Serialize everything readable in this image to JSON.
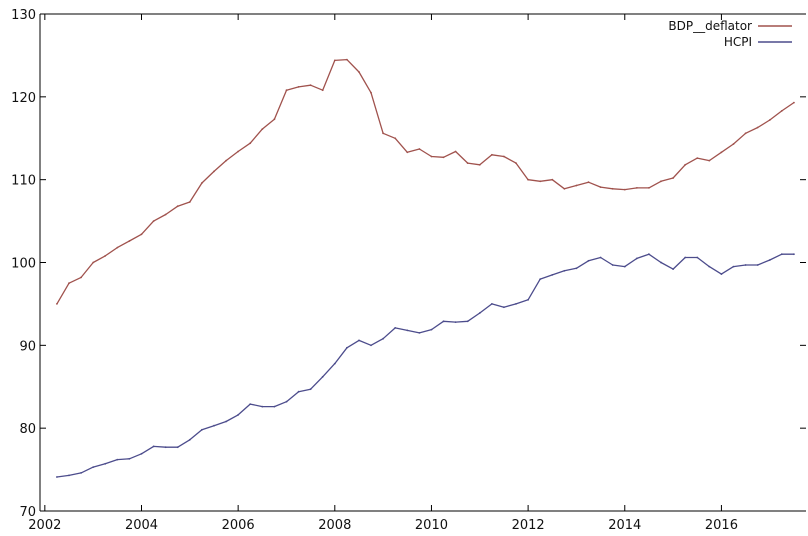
{
  "chart_data": {
    "type": "line",
    "title": "",
    "xlabel": "",
    "ylabel": "",
    "xlim": [
      2001.9,
      2017.75
    ],
    "ylim": [
      70,
      130
    ],
    "x_ticks": [
      "2002",
      "2004",
      "2006",
      "2008",
      "2010",
      "2012",
      "2014",
      "2016"
    ],
    "y_ticks": [
      "70",
      "80",
      "90",
      "100",
      "110",
      "120",
      "130"
    ],
    "grid": false,
    "legend_position": "top-right",
    "x": [
      2002.25,
      2002.5,
      2002.75,
      2003.0,
      2003.25,
      2003.5,
      2003.75,
      2004.0,
      2004.25,
      2004.5,
      2004.75,
      2005.0,
      2005.25,
      2005.5,
      2005.75,
      2006.0,
      2006.25,
      2006.5,
      2006.75,
      2007.0,
      2007.25,
      2007.5,
      2007.75,
      2008.0,
      2008.25,
      2008.5,
      2008.75,
      2009.0,
      2009.25,
      2009.5,
      2009.75,
      2010.0,
      2010.25,
      2010.5,
      2010.75,
      2011.0,
      2011.25,
      2011.5,
      2011.75,
      2012.0,
      2012.25,
      2012.5,
      2012.75,
      2013.0,
      2013.25,
      2013.5,
      2013.75,
      2014.0,
      2014.25,
      2014.5,
      2014.75,
      2015.0,
      2015.25,
      2015.5,
      2015.75,
      2016.0,
      2016.25,
      2016.5,
      2016.75,
      2017.0,
      2017.25,
      2017.5
    ],
    "series": [
      {
        "name": "BDP__deflator",
        "color": "#a0524d",
        "values": [
          95.0,
          97.5,
          98.2,
          100.0,
          100.8,
          101.8,
          102.6,
          103.4,
          105.0,
          105.8,
          106.8,
          107.3,
          109.6,
          111.0,
          112.3,
          113.4,
          114.4,
          116.1,
          117.3,
          120.8,
          121.2,
          121.4,
          120.8,
          124.4,
          124.5,
          123.0,
          120.5,
          115.6,
          115.0,
          113.3,
          113.7,
          112.8,
          112.7,
          113.4,
          112.0,
          111.8,
          113.0,
          112.8,
          112.0,
          110.0,
          109.8,
          110.0,
          108.9,
          109.3,
          109.7,
          109.1,
          108.9,
          108.8,
          109.0,
          109.0,
          109.8,
          110.2,
          111.8,
          112.6,
          112.3,
          113.3,
          114.3,
          115.6,
          116.3,
          117.2,
          118.3,
          119.3
        ]
      },
      {
        "name": "HCPI",
        "color": "#4c4c8c",
        "values": [
          74.1,
          74.3,
          74.6,
          75.3,
          75.7,
          76.2,
          76.3,
          76.9,
          77.8,
          77.7,
          77.7,
          78.6,
          79.8,
          80.3,
          80.8,
          81.6,
          82.9,
          82.6,
          82.6,
          83.2,
          84.4,
          84.7,
          86.2,
          87.8,
          89.7,
          90.6,
          90.0,
          90.8,
          92.1,
          91.8,
          91.5,
          91.9,
          92.9,
          92.8,
          92.9,
          93.9,
          95.0,
          94.6,
          95.0,
          95.5,
          98.0,
          98.5,
          99.0,
          99.3,
          100.2,
          100.6,
          99.7,
          99.5,
          100.5,
          101.0,
          100.0,
          99.2,
          100.6,
          100.6,
          99.5,
          98.6,
          99.5,
          99.7,
          99.7,
          100.3,
          101.0,
          101.0
        ]
      }
    ]
  }
}
